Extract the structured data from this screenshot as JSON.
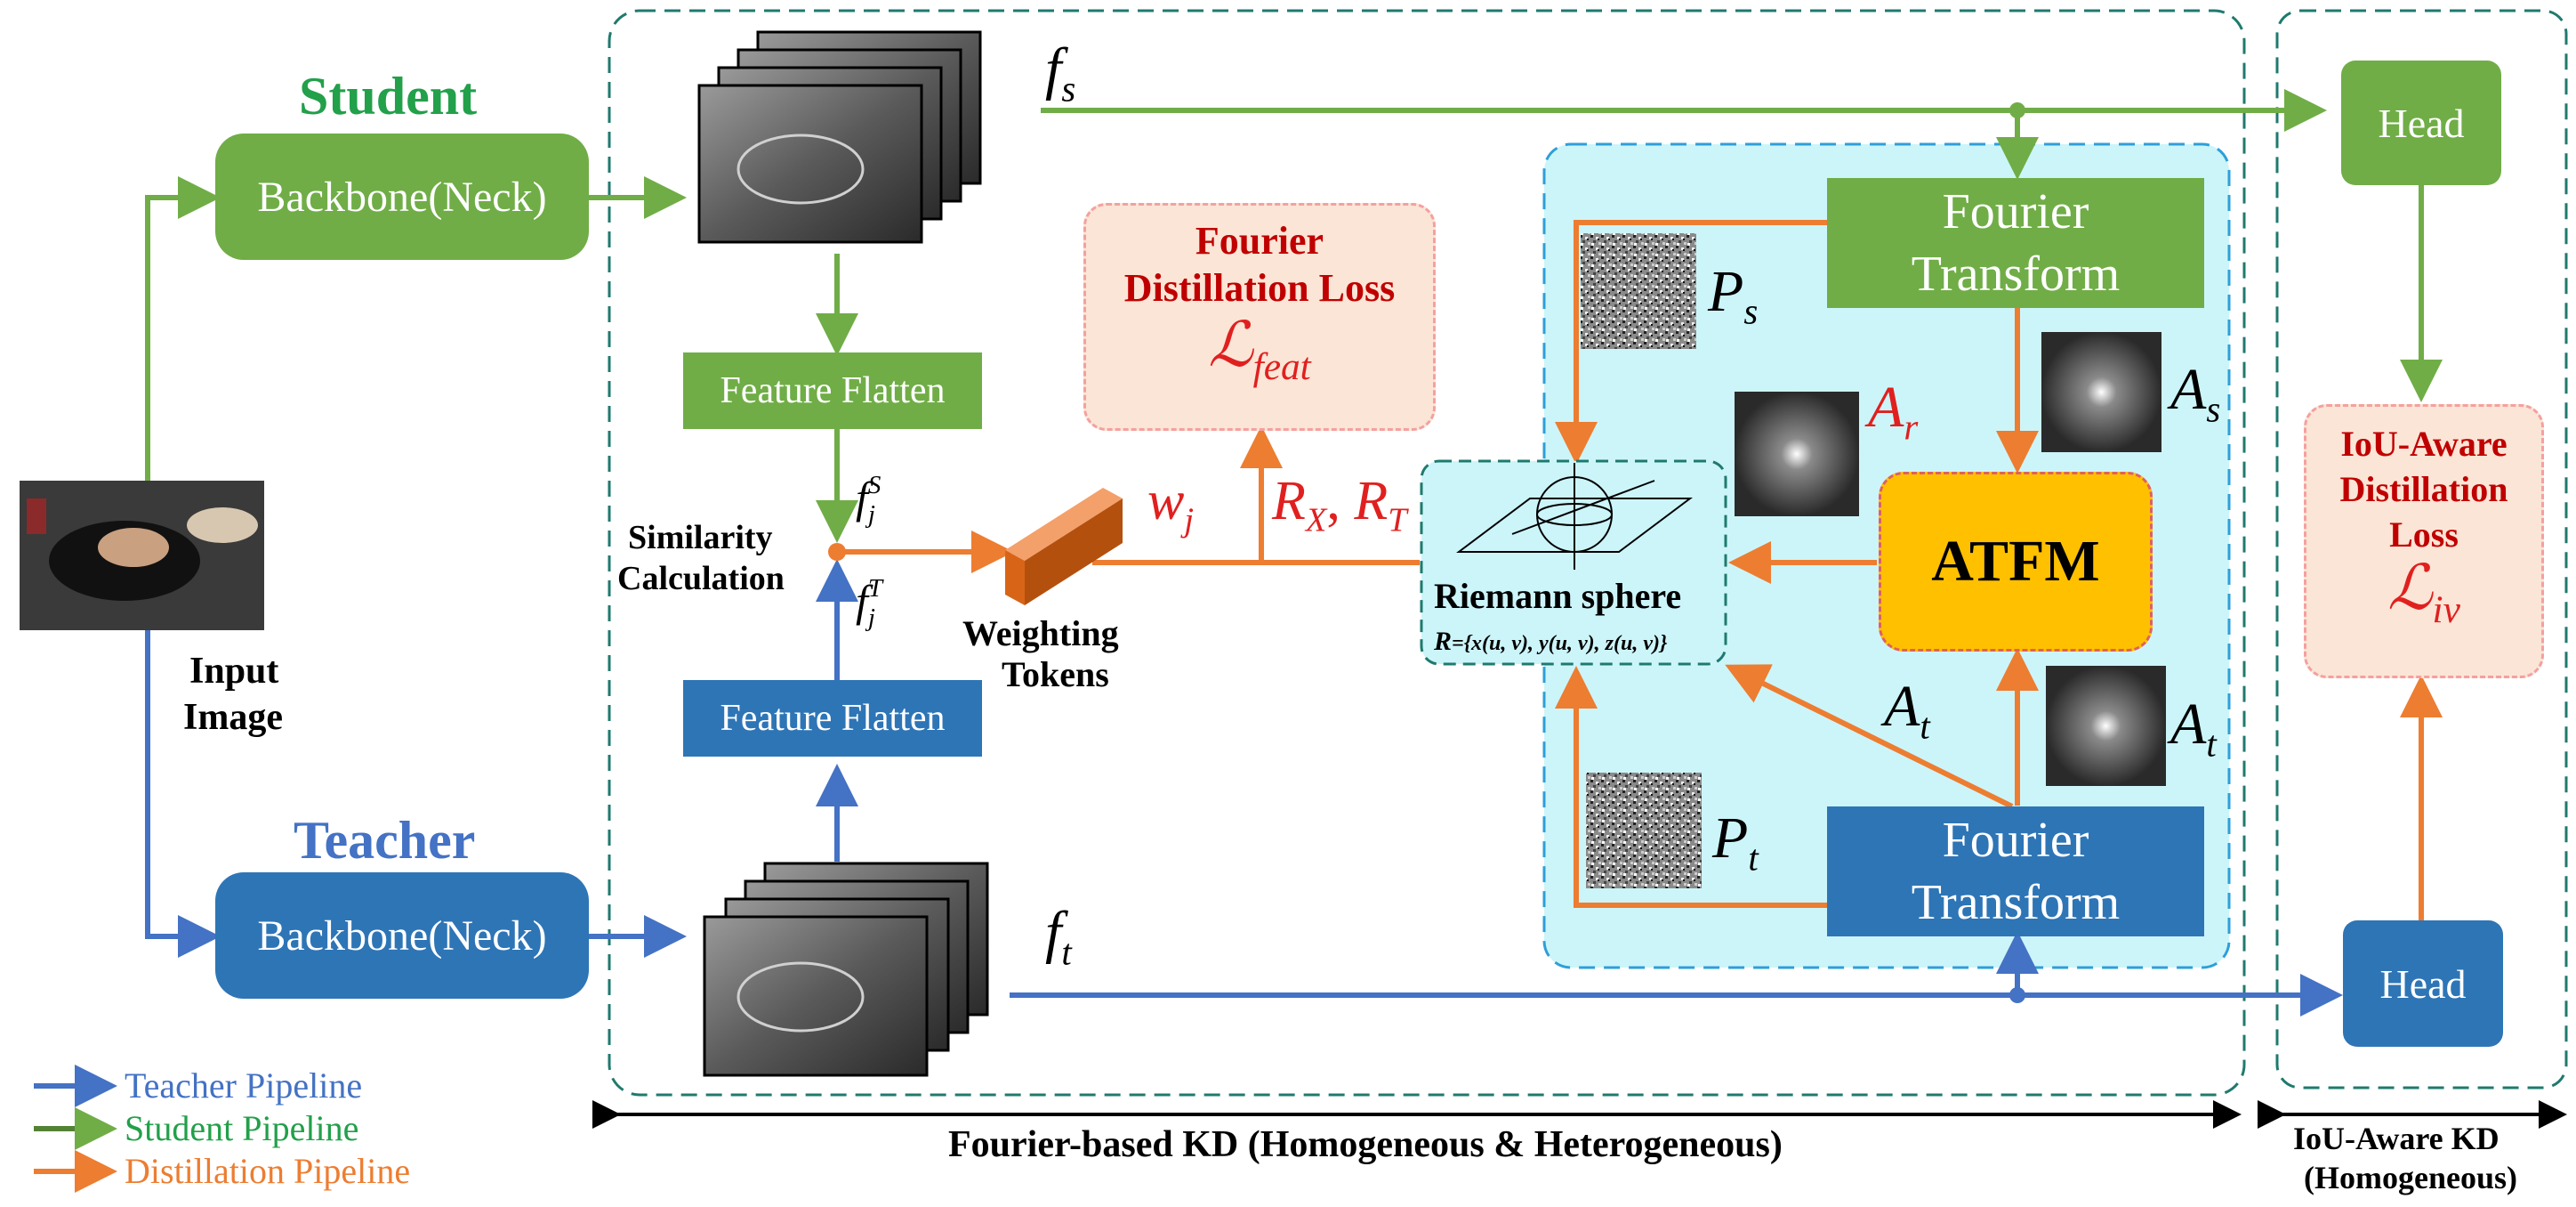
{
  "student": {
    "title": "Student",
    "backbone": "Backbone(Neck)",
    "feature_label": "f",
    "feature_sub": "s",
    "flatten": "Feature Flatten",
    "head": "Head"
  },
  "teacher": {
    "title": "Teacher",
    "backbone": "Backbone(Neck)",
    "feature_label": "f",
    "feature_sub": "t",
    "flatten": "Feature Flatten",
    "head": "Head"
  },
  "input": {
    "line1": "Input",
    "line2": "Image"
  },
  "similarity": {
    "line1": "Similarity",
    "line2": "Calculation",
    "fs_base": "f",
    "fs_sup": "S",
    "fs_sub": "j",
    "ft_base": "f",
    "ft_sup": "T",
    "ft_sub": "j"
  },
  "weighting": {
    "line1": "Weighting",
    "line2": "Tokens",
    "w": "w",
    "w_sub": "j"
  },
  "fourier_loss": {
    "line1": "Fourier",
    "line2": "Distillation Loss",
    "symbol": "ℒ",
    "symbol_sub": "feat"
  },
  "r_labels": {
    "rx": "R",
    "rx_sub": "X",
    "sep": ", ",
    "rt": "R",
    "rt_sub": "T"
  },
  "fourier_transform": {
    "student_line1": "Fourier",
    "student_line2": "Transform",
    "teacher_line1": "Fourier",
    "teacher_line2": "Transform"
  },
  "spectra": {
    "ps": "P",
    "ps_sub": "s",
    "pt": "P",
    "pt_sub": "t",
    "as": "A",
    "as_sub": "s",
    "at": "A",
    "at_sub": "t",
    "at2": "A",
    "at2_sub": "t",
    "ar": "A",
    "ar_sub": "r"
  },
  "atfm": "ATFM",
  "riemann": {
    "title": "Riemann sphere",
    "formula_lhs": "R",
    "formula_rhs": "={x(u, v), y(u, v), z(u, v)}"
  },
  "iou_loss": {
    "line1": "IoU-Aware",
    "line2": "Distillation",
    "line3": "Loss",
    "symbol": "ℒ",
    "symbol_sub": "iv"
  },
  "legend": [
    {
      "label": "Teacher Pipeline",
      "color": "#4472c4"
    },
    {
      "label": "Student Pipeline",
      "color": "#548235"
    },
    {
      "label": "Distillation Pipeline",
      "color": "#ed7d31"
    }
  ],
  "sections": {
    "fourier_kd": "Fourier-based KD (Homogeneous & Heterogeneous)",
    "iou_kd_line1": "IoU-Aware KD",
    "iou_kd_line2": "(Homogeneous)"
  },
  "colors": {
    "student": "#70ad47",
    "teacher": "#2e75b6",
    "distill": "#ed7d31",
    "atfm": "#ffc000",
    "loss_bg": "#fbe5d6",
    "panel": "#ccf5fa"
  }
}
